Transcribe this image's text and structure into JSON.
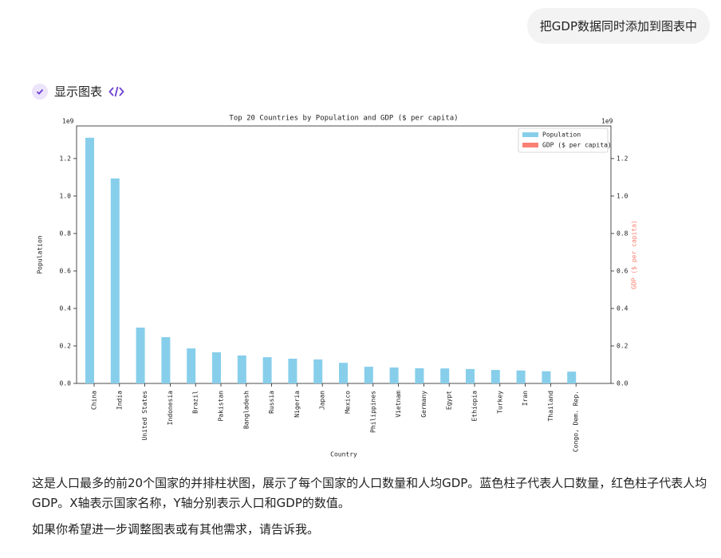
{
  "user_message": "把GDP数据同时添加到图表中",
  "tool": {
    "label": "显示图表"
  },
  "chart_data": {
    "type": "bar",
    "title": "Top 20 Countries by Population and GDP ($ per capita)",
    "xlabel": "Country",
    "ylabel": "Population",
    "y2label": "GDP ($ per capita)",
    "yoffset": "1e9",
    "y2offset": "1e9",
    "categories": [
      "China",
      "India",
      "United States",
      "Indonesia",
      "Brazil",
      "Pakistan",
      "Bangladesh",
      "Russia",
      "Nigeria",
      "Japan",
      "Mexico",
      "Philippines",
      "Vietnam",
      "Germany",
      "Egypt",
      "Ethiopia",
      "Turkey",
      "Iran",
      "Thailand",
      "Congo, Dem. Rep."
    ],
    "series": [
      {
        "name": "Population",
        "color": "#87ceeb",
        "values": [
          1.311,
          1.094,
          0.298,
          0.247,
          0.187,
          0.166,
          0.149,
          0.14,
          0.132,
          0.128,
          0.11,
          0.089,
          0.085,
          0.081,
          0.08,
          0.077,
          0.072,
          0.069,
          0.065,
          0.063
        ]
      },
      {
        "name": "GDP ($ per capita)",
        "color": "#fa8072",
        "axis": "y2",
        "values": [
          0,
          0,
          0,
          0,
          0,
          0,
          0,
          0,
          0,
          0,
          0,
          0,
          0,
          0,
          0,
          0,
          0,
          0,
          0,
          0
        ]
      }
    ],
    "ylim": [
      0,
      1.374
    ],
    "yticks": [
      {
        "value": 0,
        "label": "0.0"
      },
      0.2,
      0.4,
      0.6,
      0.8,
      {
        "value": 1,
        "label": "1.0"
      },
      1.2
    ],
    "y2lim": [
      0,
      1.374
    ],
    "y2ticks": [
      {
        "value": 0,
        "label": "0.0"
      },
      0.2,
      0.4,
      0.6,
      0.8,
      {
        "value": 1,
        "label": "1.0"
      },
      1.2
    ],
    "legend": "upper right"
  },
  "reply": {
    "paragraphs": [
      "这是人口最多的前20个国家的并排柱状图，展示了每个国家的人口数量和人均GDP。蓝色柱子代表人口数量，红色柱子代表人均GDP。X轴表示国家名称，Y轴分别表示人口和GDP的数值。",
      "如果你希望进一步调整图表或有其他需求，请告诉我。"
    ]
  }
}
